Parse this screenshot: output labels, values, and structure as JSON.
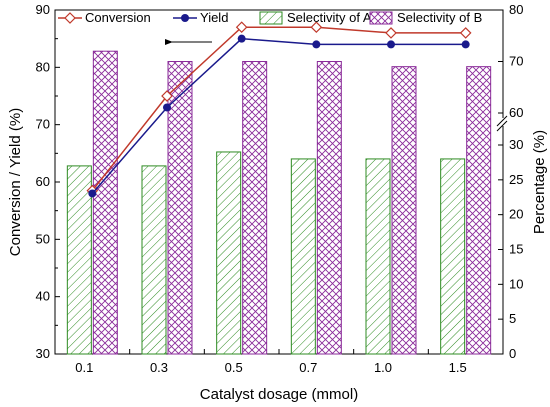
{
  "chart_data": {
    "type": "bar",
    "categories": [
      "0.1",
      "0.3",
      "0.5",
      "0.7",
      "1.0",
      "1.5"
    ],
    "xlabel": "Catalyst dosage (mmol)",
    "ylabel_left": "Conversion / Yield (%)",
    "ylabel_right": "Percentage (%)",
    "ylim_left": [
      30,
      90
    ],
    "ylim_right_lower": [
      0,
      30
    ],
    "ylim_right_upper": [
      60,
      80
    ],
    "left_ticks": [
      "30",
      "40",
      "50",
      "60",
      "70",
      "80",
      "90"
    ],
    "right_ticks_lower": [
      "0",
      "5",
      "10",
      "15",
      "20",
      "25",
      "30"
    ],
    "right_ticks_upper": [
      "60",
      "70",
      "80"
    ],
    "bar_series": [
      {
        "name": "Selectivity of A",
        "axis": "right",
        "values": [
          27,
          27,
          29,
          28,
          28,
          28
        ],
        "color": "#2e8b22",
        "pattern": "diagonal"
      },
      {
        "name": "Selectivity of B",
        "axis": "right",
        "values": [
          72,
          70,
          70,
          70,
          69,
          69
        ],
        "color": "#8a2b9a",
        "pattern": "crosshatch"
      }
    ],
    "line_series": [
      {
        "name": "Conversion",
        "axis": "left",
        "values": [
          58.5,
          75,
          87,
          87,
          86,
          86
        ],
        "color": "#c0392b",
        "marker": "diamond-open"
      },
      {
        "name": "Yield",
        "axis": "left",
        "values": [
          58,
          73,
          85,
          84,
          84,
          84
        ],
        "color": "#1a1a8c",
        "marker": "circle-filled"
      }
    ],
    "legend": [
      "Conversion",
      "Yield",
      "Selectivity of A",
      "Selectivity of B"
    ],
    "legend_position": "top",
    "arrow_annotation": "points left toward left axis"
  }
}
